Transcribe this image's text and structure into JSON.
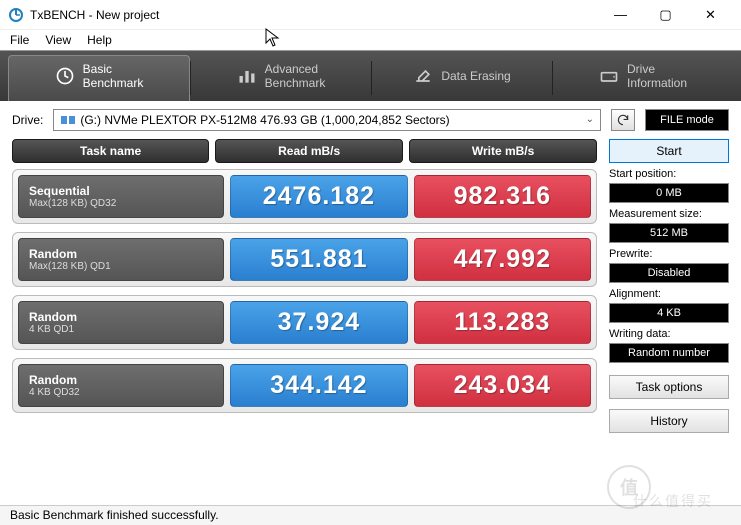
{
  "window": {
    "title": "TxBENCH - New project"
  },
  "menu": {
    "file": "File",
    "view": "View",
    "help": "Help"
  },
  "tabs": {
    "basic": {
      "line1": "Basic",
      "line2": "Benchmark"
    },
    "adv": {
      "line1": "Advanced",
      "line2": "Benchmark"
    },
    "erase": {
      "line1": "Data Erasing"
    },
    "info": {
      "line1": "Drive",
      "line2": "Information"
    }
  },
  "drive": {
    "label": "Drive:",
    "text": "(G:) NVMe PLEXTOR PX-512M8   476.93 GB (1,000,204,852 Sectors)",
    "file_mode": "FILE mode"
  },
  "headers": {
    "task": "Task name",
    "read": "Read mB/s",
    "write": "Write mB/s"
  },
  "rows": [
    {
      "name": "Sequential",
      "sub": "Max(128 KB) QD32",
      "read": "2476.182",
      "write": "982.316"
    },
    {
      "name": "Random",
      "sub": "Max(128 KB) QD1",
      "read": "551.881",
      "write": "447.992"
    },
    {
      "name": "Random",
      "sub": "4 KB QD1",
      "read": "37.924",
      "write": "113.283"
    },
    {
      "name": "Random",
      "sub": "4 KB QD32",
      "read": "344.142",
      "write": "243.034"
    }
  ],
  "side": {
    "start": "Start",
    "start_pos_lbl": "Start position:",
    "start_pos_val": "0 MB",
    "meas_lbl": "Measurement size:",
    "meas_val": "512 MB",
    "prewrite_lbl": "Prewrite:",
    "prewrite_val": "Disabled",
    "align_lbl": "Alignment:",
    "align_val": "4 KB",
    "wdata_lbl": "Writing data:",
    "wdata_val": "Random number",
    "task_opts": "Task options",
    "history": "History"
  },
  "status": "Basic Benchmark finished successfully.",
  "colors": {
    "read_bg": "#3a8ed8",
    "write_bg": "#d83848",
    "tab_bg": "#404040"
  }
}
